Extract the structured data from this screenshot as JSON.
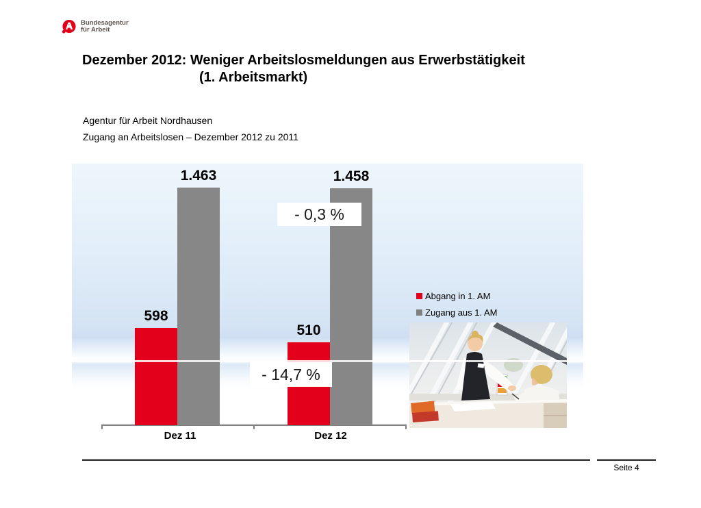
{
  "brand": {
    "name_line1": "Bundesagentur",
    "name_line2": "für Arbeit"
  },
  "title": {
    "line1": "Dezember 2012: Weniger Arbeitslosmeldungen aus Erwerbstätigkeit",
    "line2": "(1. Arbeitsmarkt)"
  },
  "subtitle_office": "Agentur für Arbeit Nordhausen",
  "subtitle_chart": "Zugang an Arbeitslosen – Dezember 2012 zu 2011",
  "footer": {
    "page_label": "Seite 4"
  },
  "colors": {
    "brand_red": "#e2001a",
    "header_gray": "#c6c6c6",
    "title_rule_red": "#c00a1c",
    "bar_red": "#e2001a",
    "bar_gray": "#878787",
    "axis_gray": "#808080"
  },
  "photo": {
    "alt": "Beraterin mit Kundin am Schreibtisch im Büro"
  },
  "chart_data": {
    "type": "bar",
    "title": "Zugang an Arbeitslosen – Dezember 2012 zu 2011",
    "categories": [
      "Dez 11",
      "Dez 12"
    ],
    "series": [
      {
        "name": "Abgang in 1. AM",
        "color": "#e2001a",
        "values": [
          598,
          510
        ],
        "labels": [
          "598",
          "510"
        ]
      },
      {
        "name": "Zugang aus 1. AM",
        "color": "#878787",
        "values": [
          1463,
          1458
        ],
        "labels": [
          "1.463",
          "1.458"
        ]
      }
    ],
    "annotations": [
      {
        "text": "- 0,3 %",
        "series": "Zugang aus 1. AM",
        "category": "Dez 12"
      },
      {
        "text": "- 14,7 %",
        "series": "Abgang in 1. AM",
        "category": "Dez 12"
      }
    ],
    "ylim": [
      0,
      1600
    ],
    "xlabel": "",
    "ylabel": "",
    "grid": false,
    "legend_position": "right-middle"
  }
}
